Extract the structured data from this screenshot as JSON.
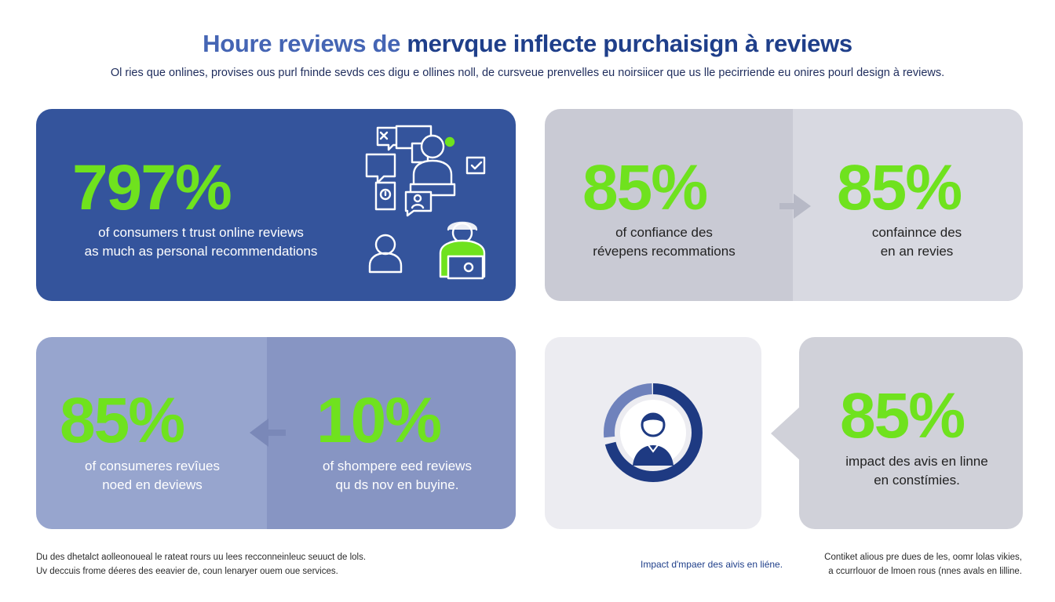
{
  "header": {
    "title_part1": "Houre reviews de ",
    "title_part2": "mervque inflecte purchaisign à reviews",
    "subtitle": "Ol ries que onlines, provises ous purl fninde sevds ces digu e ollines noll, de cursveue prenvelles eu noirsiicer que us lle pecirriende eu onires pourl design à reviews."
  },
  "card1": {
    "value": "797%",
    "caption_line1": "of consumers t trust online reviews",
    "caption_line2": "as much as personal recommendations",
    "icon": "chat-people-illustration"
  },
  "card2": {
    "left": {
      "value": "85%",
      "caption_line1": "of confiance des",
      "caption_line2": "révepens recommations"
    },
    "right": {
      "value": "85%",
      "caption_line1": "confainnce des",
      "caption_line2": "en an revies"
    }
  },
  "card3": {
    "left": {
      "value": "85%",
      "caption_line1": "of consumeres revîues",
      "caption_line2": "noed en deviews"
    },
    "right": {
      "value": "10%",
      "caption_line1": "of shompere eed reviews",
      "caption_line2": "qu ds nov en buyine."
    }
  },
  "card4": {
    "icon": "user-ring-icon",
    "value": "85%",
    "caption_line1": "impact des avis en linne",
    "caption_line2": "en constímies."
  },
  "footer": {
    "left_line1": "Du des dhetalct aolleonoueal le rateat rours uu lees recconneinleuc seuuct de lols.",
    "left_line2": "Uv deccuis frome déeres des eeavier de, coun lenaryer ouem oue services.",
    "middle": "Impact d'mpaer des aivis  en liéne.",
    "right_line1": "Contiket alious pre dues de les, oomr lolas vikies,",
    "right_line2": "a ccurrlouor de lmoen rous (nnes avals en lilline."
  },
  "colors": {
    "navy": "#1f3f8a",
    "card_blue": "#34549c",
    "card_lavender": "#97a5ce",
    "card_grey": "#c9cad4",
    "accent_green": "#6fe21e"
  }
}
